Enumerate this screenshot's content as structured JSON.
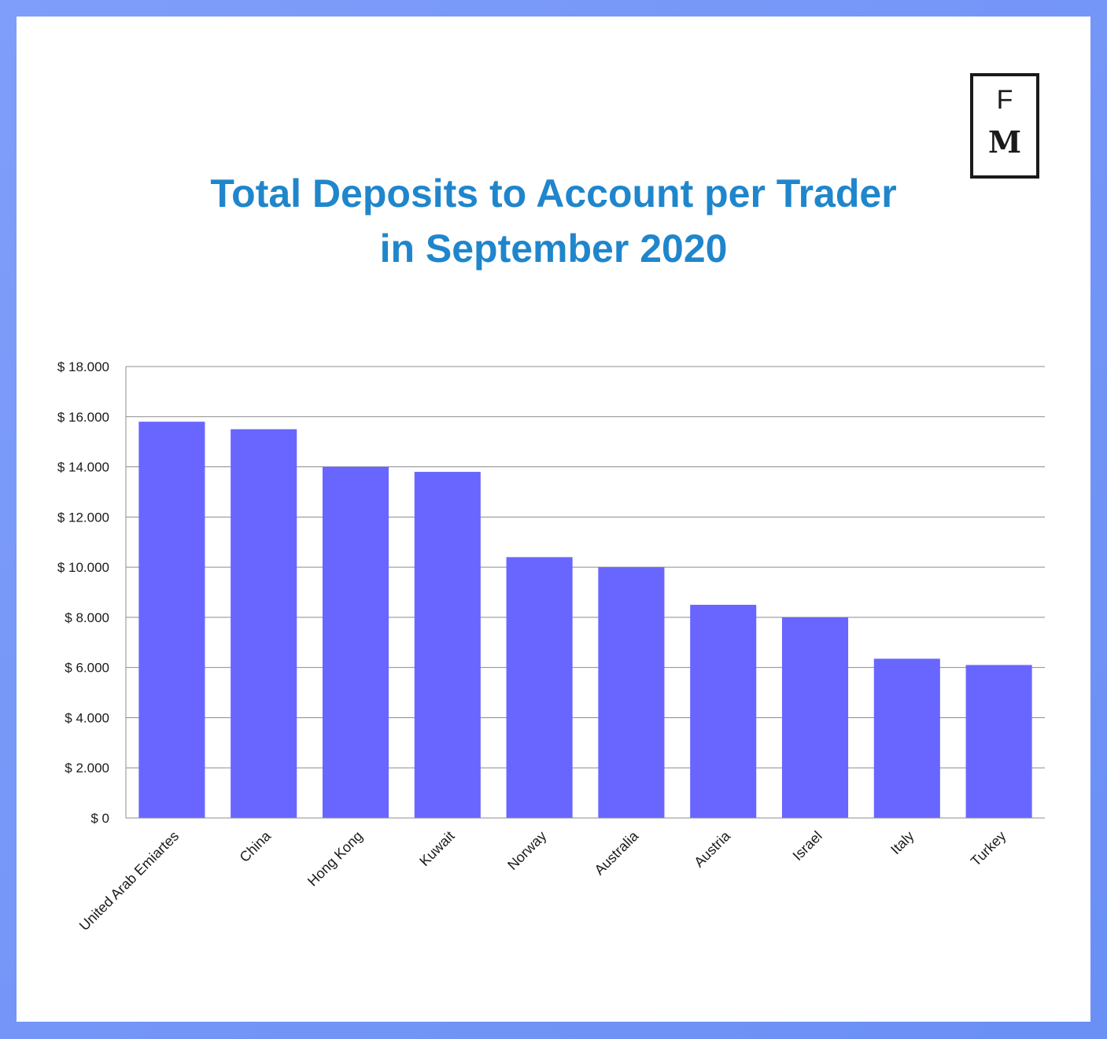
{
  "title_line1": "Total Deposits to Account per Trader",
  "title_line2": "in September 2020",
  "logo": {
    "letter_top": "F",
    "letter_bottom": "M"
  },
  "colors": {
    "bar": "#6966ff",
    "title": "#1f86cc",
    "grid": "#8c8c8c",
    "border": "#7f9dfa"
  },
  "chart_data": {
    "type": "bar",
    "title": "Total Deposits to Account per Trader in September 2020",
    "xlabel": "",
    "ylabel": "",
    "categories": [
      "United Arab Emiartes",
      "China",
      "Hong Kong",
      "Kuwait",
      "Norway",
      "Australia",
      "Austria",
      "Israel",
      "Italy",
      "Turkey"
    ],
    "values": [
      15800,
      15500,
      14000,
      13800,
      10400,
      10000,
      8500,
      8000,
      6350,
      6100
    ],
    "ylim": [
      0,
      18000
    ],
    "yticks": [
      0,
      2000,
      4000,
      6000,
      8000,
      10000,
      12000,
      14000,
      16000,
      18000
    ],
    "ytick_labels": [
      "$ 0",
      "$ 2.000",
      "$ 4.000",
      "$ 6.000",
      "$ 8.000",
      "$ 10.000",
      "$ 12.000",
      "$ 14.000",
      "$ 16.000",
      "$ 18.000"
    ],
    "grid": true,
    "legend": "none"
  }
}
